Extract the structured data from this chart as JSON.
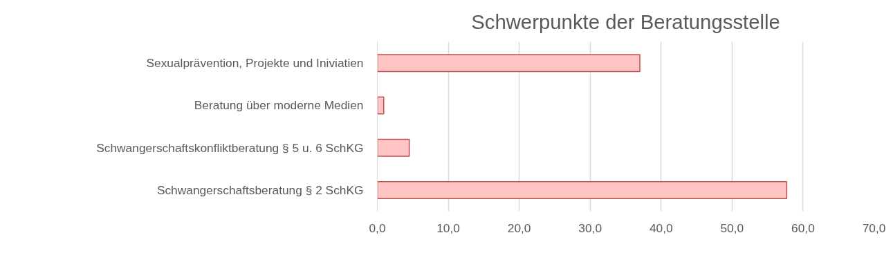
{
  "chart_data": {
    "type": "bar",
    "orientation": "horizontal",
    "title": "Schwerpunkte der Beratungsstelle",
    "categories": [
      "Sexualprävention, Projekte und Iniviatien",
      "Beratung über moderne Medien",
      "Schwangerschaftskonfliktberatung § 5 u. 6 SchKG",
      "Schwangerschaftsberatung § 2 SchKG"
    ],
    "values": [
      37.0,
      0.9,
      4.5,
      57.7
    ],
    "color": "#ffc4c4",
    "xlim": [
      0,
      70
    ],
    "xticks": [
      {
        "value": 0,
        "label": "0,0"
      },
      {
        "value": 10,
        "label": "10,0"
      },
      {
        "value": 20,
        "label": "20,0"
      },
      {
        "value": 30,
        "label": "30,0"
      },
      {
        "value": 40,
        "label": "40,0"
      },
      {
        "value": 50,
        "label": "50,0"
      },
      {
        "value": 60,
        "label": "60,0"
      },
      {
        "value": 70,
        "label": "70,0"
      }
    ],
    "grid": "x"
  }
}
